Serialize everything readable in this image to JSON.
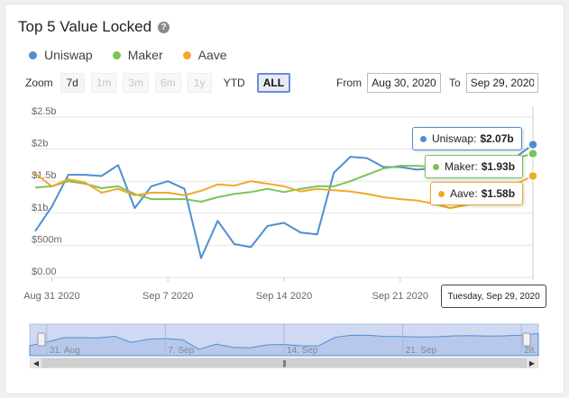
{
  "title": "Top 5 Value Locked",
  "legend": [
    {
      "name": "Uniswap",
      "color": "#4e8fd1"
    },
    {
      "name": "Maker",
      "color": "#79c457"
    },
    {
      "name": "Aave",
      "color": "#f0a92a"
    }
  ],
  "zoom": {
    "label": "Zoom",
    "buttons": [
      {
        "label": "7d",
        "state": "normal"
      },
      {
        "label": "1m",
        "state": "disabled"
      },
      {
        "label": "3m",
        "state": "disabled"
      },
      {
        "label": "6m",
        "state": "disabled"
      },
      {
        "label": "1y",
        "state": "disabled"
      },
      {
        "label": "YTD",
        "state": "plain"
      },
      {
        "label": "ALL",
        "state": "active"
      }
    ]
  },
  "range": {
    "from_label": "From",
    "from_value": "Aug 30, 2020",
    "to_label": "To",
    "to_value": "Sep 29, 2020"
  },
  "tooltips": [
    {
      "series": "Uniswap",
      "value": "$2.07b",
      "color": "#4e8fd1",
      "border": "#4e8fd1"
    },
    {
      "series": "Maker",
      "value": "$1.93b",
      "color": "#79c457",
      "border": "#79c457"
    },
    {
      "series": "Aave",
      "value": "$1.58b",
      "color": "#f0a92a",
      "border": "#f0a92a"
    }
  ],
  "date_tooltip": "Tuesday, Sep 29, 2020",
  "navigator": {
    "labels": [
      "31. Aug",
      "7. Sep",
      "14. Sep",
      "21. Sep",
      "28."
    ]
  },
  "chart_data": {
    "type": "line",
    "x_start": "Aug 30 2020",
    "x": [
      "2020-08-30",
      "2020-08-31",
      "2020-09-01",
      "2020-09-02",
      "2020-09-03",
      "2020-09-04",
      "2020-09-05",
      "2020-09-06",
      "2020-09-07",
      "2020-09-08",
      "2020-09-09",
      "2020-09-10",
      "2020-09-11",
      "2020-09-12",
      "2020-09-13",
      "2020-09-14",
      "2020-09-15",
      "2020-09-16",
      "2020-09-17",
      "2020-09-18",
      "2020-09-19",
      "2020-09-20",
      "2020-09-21",
      "2020-09-22",
      "2020-09-23",
      "2020-09-24",
      "2020-09-25",
      "2020-09-26",
      "2020-09-27",
      "2020-09-28",
      "2020-09-29"
    ],
    "x_ticks": [
      "Aug 31 2020",
      "Sep 7 2020",
      "Sep 14 2020",
      "Sep 21 2020"
    ],
    "y_ticks": [
      "$0.00",
      "$500m",
      "$1b",
      "$1.5b",
      "$2b",
      "$2.5b"
    ],
    "ylim": [
      0,
      2.5
    ],
    "series": [
      {
        "name": "Uniswap",
        "color": "#4e8fd1",
        "values": [
          0.72,
          1.1,
          1.6,
          1.6,
          1.58,
          1.75,
          1.08,
          1.42,
          1.5,
          1.38,
          0.3,
          0.88,
          0.52,
          0.47,
          0.8,
          0.85,
          0.7,
          0.67,
          1.63,
          1.88,
          1.86,
          1.72,
          1.72,
          1.68,
          1.7,
          1.8,
          1.82,
          1.78,
          1.8,
          1.88,
          2.07
        ]
      },
      {
        "name": "Maker",
        "color": "#79c457",
        "values": [
          1.4,
          1.42,
          1.5,
          1.46,
          1.39,
          1.42,
          1.3,
          1.22,
          1.22,
          1.22,
          1.18,
          1.25,
          1.3,
          1.33,
          1.38,
          1.33,
          1.38,
          1.42,
          1.42,
          1.5,
          1.6,
          1.7,
          1.74,
          1.74,
          1.72,
          1.72,
          1.72,
          1.74,
          1.78,
          1.86,
          1.93
        ]
      },
      {
        "name": "Aave",
        "color": "#f0a92a",
        "values": [
          1.62,
          1.42,
          1.53,
          1.48,
          1.32,
          1.38,
          1.28,
          1.32,
          1.32,
          1.28,
          1.35,
          1.45,
          1.43,
          1.5,
          1.46,
          1.42,
          1.34,
          1.38,
          1.36,
          1.34,
          1.3,
          1.25,
          1.22,
          1.2,
          1.15,
          1.08,
          1.13,
          1.18,
          1.3,
          1.46,
          1.58
        ]
      }
    ]
  }
}
